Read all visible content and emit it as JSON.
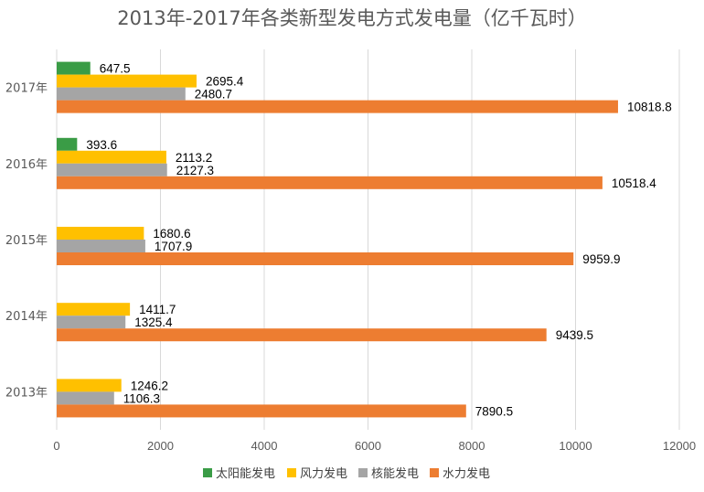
{
  "chart_data": {
    "type": "bar",
    "orientation": "horizontal",
    "title": "2013年-2017年各类新型发电方式发电量（亿千瓦时）",
    "categories": [
      "2013年",
      "2014年",
      "2015年",
      "2016年",
      "2017年"
    ],
    "series": [
      {
        "name": "太阳能发电",
        "color": "#3a9c46",
        "values": [
          null,
          null,
          null,
          393.6,
          647.5
        ]
      },
      {
        "name": "风力发电",
        "color": "#ffc000",
        "values": [
          1246.2,
          1411.7,
          1680.6,
          2113.2,
          2695.4
        ]
      },
      {
        "name": "核能发电",
        "color": "#a5a5a5",
        "values": [
          1106.3,
          1325.4,
          1707.9,
          2127.3,
          2480.7
        ]
      },
      {
        "name": "水力发电",
        "color": "#ed7d31",
        "values": [
          7890.5,
          9439.5,
          9959.9,
          10518.4,
          10818.8
        ]
      }
    ],
    "xlim": [
      0,
      12000
    ],
    "xticks": [
      0,
      2000,
      4000,
      6000,
      8000,
      10000,
      12000
    ],
    "xlabel": "",
    "ylabel": "",
    "grid": "vertical",
    "legend": "bottom"
  }
}
